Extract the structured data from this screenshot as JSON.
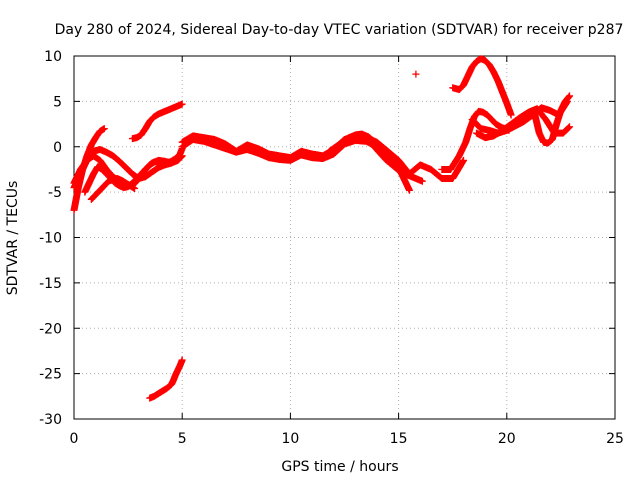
{
  "chart_data": {
    "type": "scatter",
    "title": "Day 280 of 2024, Sidereal Day-to-day VTEC variation (SDTVAR) for receiver p287",
    "xlabel": "GPS time / hours",
    "ylabel": "SDTVAR / TECUs",
    "xlim": [
      0,
      25
    ],
    "ylim": [
      -30,
      10
    ],
    "xticks": [
      "0",
      "5",
      "10",
      "15",
      "20",
      "25"
    ],
    "yticks": [
      "10",
      "5",
      "0",
      "-5",
      "-10",
      "-15",
      "-20",
      "-25",
      "-30"
    ],
    "grid": true,
    "marker": "+",
    "color": "#ff0000",
    "series": [
      {
        "name": "s1",
        "x": [
          0.0,
          0.2,
          0.4,
          0.6,
          0.8,
          1.0,
          1.2,
          1.4
        ],
        "y": [
          -7.0,
          -4.5,
          -2.5,
          -1.0,
          0.2,
          1.0,
          1.7,
          2.0
        ]
      },
      {
        "name": "s2",
        "x": [
          0.0,
          0.3,
          0.6,
          0.9,
          1.2,
          1.5,
          1.8,
          2.1,
          2.4,
          2.7,
          3.0,
          3.3,
          3.6,
          3.9,
          4.2,
          4.5,
          4.8,
          5.0
        ],
        "y": [
          -4.5,
          -3.0,
          -1.5,
          -0.5,
          -0.3,
          -0.6,
          -1.0,
          -1.6,
          -2.3,
          -3.0,
          -3.5,
          -3.3,
          -2.8,
          -2.3,
          -2.0,
          -1.8,
          -1.5,
          -1.0
        ]
      },
      {
        "name": "s3",
        "x": [
          0.0,
          0.3,
          0.6,
          0.9,
          1.2,
          1.5,
          1.8,
          2.1,
          2.4,
          2.7,
          3.0,
          3.3,
          3.6,
          3.9,
          4.2,
          4.5
        ],
        "y": [
          -4.0,
          -2.5,
          -1.5,
          -1.0,
          -1.5,
          -2.5,
          -3.3,
          -3.8,
          -4.2,
          -4.3,
          -3.5,
          -2.5,
          -1.8,
          -1.5,
          -1.6,
          -1.8
        ]
      },
      {
        "name": "s4",
        "x": [
          0.5,
          0.7,
          0.9,
          1.1,
          1.3,
          1.5,
          1.7,
          1.9,
          2.1,
          2.3,
          2.5,
          2.7,
          2.9,
          3.1,
          3.3,
          3.5,
          3.7,
          3.9,
          4.1,
          4.3,
          4.5,
          4.7,
          4.9,
          5.0
        ],
        "y": [
          -5.0,
          -4.0,
          -3.0,
          -2.2,
          -2.5,
          -3.0,
          -3.5,
          -4.0,
          -4.3,
          -4.5,
          -4.4,
          -4.0,
          -3.5,
          -3.0,
          -2.5,
          -2.0,
          -1.7,
          -1.6,
          -1.7,
          -1.8,
          -1.6,
          -1.3,
          -0.8,
          -0.2
        ]
      },
      {
        "name": "s5",
        "x": [
          0.8,
          1.0,
          1.2,
          1.4,
          1.6,
          1.8,
          2.0,
          2.2,
          2.4,
          2.6,
          2.8
        ],
        "y": [
          -5.8,
          -5.3,
          -4.8,
          -4.3,
          -3.8,
          -3.6,
          -3.5,
          -3.7,
          -4.0,
          -4.3,
          -4.6
        ]
      },
      {
        "name": "s6",
        "x": [
          2.7,
          2.9,
          3.1,
          3.3,
          3.5,
          3.7,
          3.9,
          4.1,
          4.3,
          4.5,
          4.7,
          4.9,
          5.0
        ],
        "y": [
          0.9,
          1.0,
          1.3,
          2.0,
          2.8,
          3.3,
          3.6,
          3.8,
          4.0,
          4.2,
          4.4,
          4.6,
          4.7
        ]
      },
      {
        "name": "s7",
        "x": [
          3.5,
          3.7,
          3.9,
          4.1,
          4.3,
          4.5,
          4.6,
          4.7,
          4.8,
          4.9,
          5.0
        ],
        "y": [
          -27.7,
          -27.5,
          -27.2,
          -26.9,
          -26.6,
          -26.2,
          -25.7,
          -25.1,
          -24.6,
          -24.1,
          -23.5
        ]
      },
      {
        "name": "s8",
        "x": [
          5.0,
          5.5,
          6.0,
          6.5,
          7.0,
          7.5,
          8.0,
          8.5,
          9.0,
          9.5,
          10.0,
          10.5,
          11.0,
          11.5,
          12.0,
          12.5,
          13.0,
          13.5,
          14.0,
          14.5,
          15.0,
          15.5,
          16.0,
          16.5,
          17.0,
          17.5,
          18.0
        ],
        "y": [
          0.5,
          1.2,
          1.0,
          0.8,
          0.3,
          -0.5,
          0.2,
          -0.2,
          -0.8,
          -1.0,
          -1.2,
          -0.5,
          -0.8,
          -1.0,
          -0.3,
          0.8,
          1.2,
          1.0,
          0.5,
          -0.5,
          -1.5,
          -3.0,
          -2.0,
          -2.5,
          -3.5,
          -3.5,
          -1.5
        ]
      },
      {
        "name": "s9",
        "x": [
          5.0,
          5.5,
          6.0,
          6.5,
          7.0,
          7.5,
          8.0,
          8.5,
          9.0,
          9.5,
          10.0,
          10.5,
          11.0,
          11.5,
          12.0,
          12.5,
          13.0,
          13.5,
          14.0,
          14.5,
          15.0
        ],
        "y": [
          0.0,
          0.8,
          0.6,
          0.2,
          -0.2,
          -0.6,
          -0.3,
          -0.7,
          -1.2,
          -1.4,
          -1.5,
          -0.9,
          -1.2,
          -1.3,
          -0.8,
          0.3,
          0.7,
          0.6,
          0.0,
          -1.0,
          -2.0
        ]
      },
      {
        "name": "s10",
        "x": [
          11.8,
          12.1,
          12.4,
          12.7,
          13.0,
          13.3,
          13.6,
          13.9,
          14.2,
          14.5,
          14.8,
          15.1,
          15.3,
          15.5
        ],
        "y": [
          -0.5,
          0.0,
          0.5,
          1.0,
          1.3,
          1.4,
          1.1,
          0.5,
          -0.3,
          -1.0,
          -1.8,
          -2.8,
          -3.8,
          -4.8
        ]
      },
      {
        "name": "s11",
        "x": [
          13.5,
          13.8,
          14.1,
          14.4,
          14.7,
          15.0,
          15.3,
          15.6,
          15.9,
          16.1
        ],
        "y": [
          1.0,
          0.2,
          -0.6,
          -1.4,
          -2.0,
          -2.6,
          -3.0,
          -3.3,
          -3.6,
          -3.8
        ]
      },
      {
        "name": "s12",
        "x": [
          15.8
        ],
        "y": [
          8.0
        ]
      },
      {
        "name": "s13",
        "x": [
          17.0,
          17.4,
          17.8,
          18.1,
          18.3,
          18.5,
          18.7,
          18.9,
          19.1,
          19.3,
          19.5,
          19.7,
          19.9,
          20.1
        ],
        "y": [
          -2.5,
          -2.5,
          -1.0,
          0.5,
          2.0,
          3.3,
          3.9,
          3.8,
          3.5,
          3.0,
          2.5,
          2.2,
          2.0,
          1.8
        ]
      },
      {
        "name": "s14",
        "x": [
          17.5,
          17.8,
          18.0,
          18.2,
          18.4,
          18.6,
          18.8,
          19.0,
          19.2,
          19.4,
          19.6,
          19.8,
          20.0,
          20.2
        ],
        "y": [
          6.5,
          6.3,
          6.8,
          7.8,
          8.8,
          9.4,
          9.7,
          9.5,
          9.0,
          8.2,
          7.2,
          6.0,
          4.8,
          3.5
        ]
      },
      {
        "name": "s15",
        "x": [
          18.4,
          18.8,
          19.2,
          19.6,
          20.0,
          20.4,
          20.8,
          21.2,
          21.6,
          22.0,
          22.4,
          22.8
        ],
        "y": [
          3.0,
          2.0,
          1.8,
          1.5,
          1.8,
          2.3,
          2.8,
          3.5,
          4.3,
          4.0,
          3.5,
          5.0
        ]
      },
      {
        "name": "s16",
        "x": [
          18.6,
          19.0,
          19.4,
          19.8,
          20.2,
          20.6,
          21.0,
          21.4,
          21.8,
          22.2,
          22.6,
          22.9
        ],
        "y": [
          1.5,
          1.0,
          1.2,
          1.8,
          2.5,
          3.2,
          3.8,
          4.2,
          3.0,
          1.5,
          1.5,
          2.2
        ]
      },
      {
        "name": "s17",
        "x": [
          21.3,
          21.5,
          21.7,
          21.9,
          22.1,
          22.3,
          22.5,
          22.7,
          22.9
        ],
        "y": [
          3.5,
          1.5,
          0.5,
          0.4,
          0.8,
          2.5,
          4.0,
          5.0,
          5.6
        ]
      }
    ]
  }
}
